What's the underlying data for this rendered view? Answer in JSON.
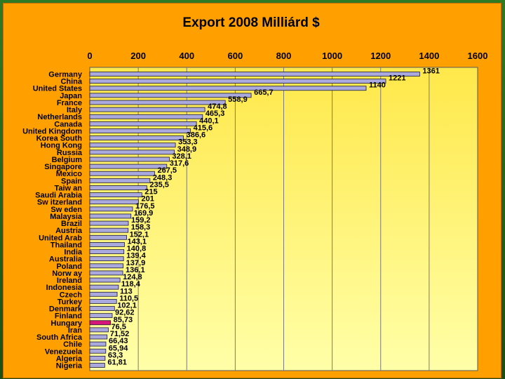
{
  "chart_data": {
    "type": "bar",
    "orientation": "horizontal",
    "title": "Export 2008 Milliárd $",
    "xlabel": "",
    "ylabel": "",
    "xlim": [
      0,
      1600
    ],
    "xticks": [
      "0",
      "200",
      "400",
      "600",
      "800",
      "1000",
      "1200",
      "1400",
      "1600"
    ],
    "grid": "vertical",
    "categories": [
      "Germany",
      "China",
      "United States",
      "Japan",
      "France",
      "Italy",
      "Netherlands",
      "Canada",
      "United Kingdom",
      "Korea South",
      "Hong Kong",
      "Russia",
      "Belgium",
      "Singapore",
      "Mexico",
      "Spain",
      "Taiw an",
      "Saudi Arabia",
      "Sw itzerland",
      "Sw eden",
      "Malaysia",
      "Brazil",
      "Austria",
      "United Arab",
      "Thailand",
      "India",
      "Australia",
      "Poland",
      "Norw ay",
      "Ireland",
      "Indonesia",
      "Czech",
      "Turkey",
      "Denmark",
      "Finland",
      "Hungary",
      "Iran",
      "South Africa",
      "Chile",
      "Venezuela",
      "Algeria",
      "Nigeria"
    ],
    "values": [
      1361,
      1221,
      1140,
      665.7,
      558.9,
      474.8,
      465.3,
      440.1,
      415.6,
      386.6,
      353.3,
      348.9,
      328.1,
      317.6,
      267.5,
      248.3,
      235.5,
      215,
      201,
      176.5,
      169.9,
      159.2,
      158.3,
      152.1,
      143.1,
      140.8,
      139.4,
      137.9,
      136.1,
      124.8,
      118.4,
      113,
      110.5,
      102.1,
      92.62,
      85.73,
      76.5,
      71.52,
      66.43,
      65.94,
      63.3,
      61.81
    ],
    "value_labels": [
      "1361",
      "1221",
      "1140",
      "665,7",
      "558,9",
      "474,8",
      "465,3",
      "440,1",
      "415,6",
      "386,6",
      "353,3",
      "348,9",
      "328,1",
      "317,6",
      "267,5",
      "248,3",
      "235,5",
      "215",
      "201",
      "176,5",
      "169,9",
      "159,2",
      "158,3",
      "152,1",
      "143,1",
      "140,8",
      "139,4",
      "137,9",
      "136,1",
      "124,8",
      "118,4",
      "113",
      "110,5",
      "102,1",
      "92,62",
      "85,73",
      "76,5",
      "71,52",
      "66,43",
      "65,94",
      "63,3",
      "61,81"
    ],
    "highlight_category": "Hungary",
    "colors": {
      "bar": "#a9a9dd",
      "bar_edge": "#1a1a33",
      "highlight": "#d6167a",
      "panel": "#ff9f00",
      "plot_top": "#ffe84a",
      "plot_bottom": "#ffffa8"
    }
  }
}
